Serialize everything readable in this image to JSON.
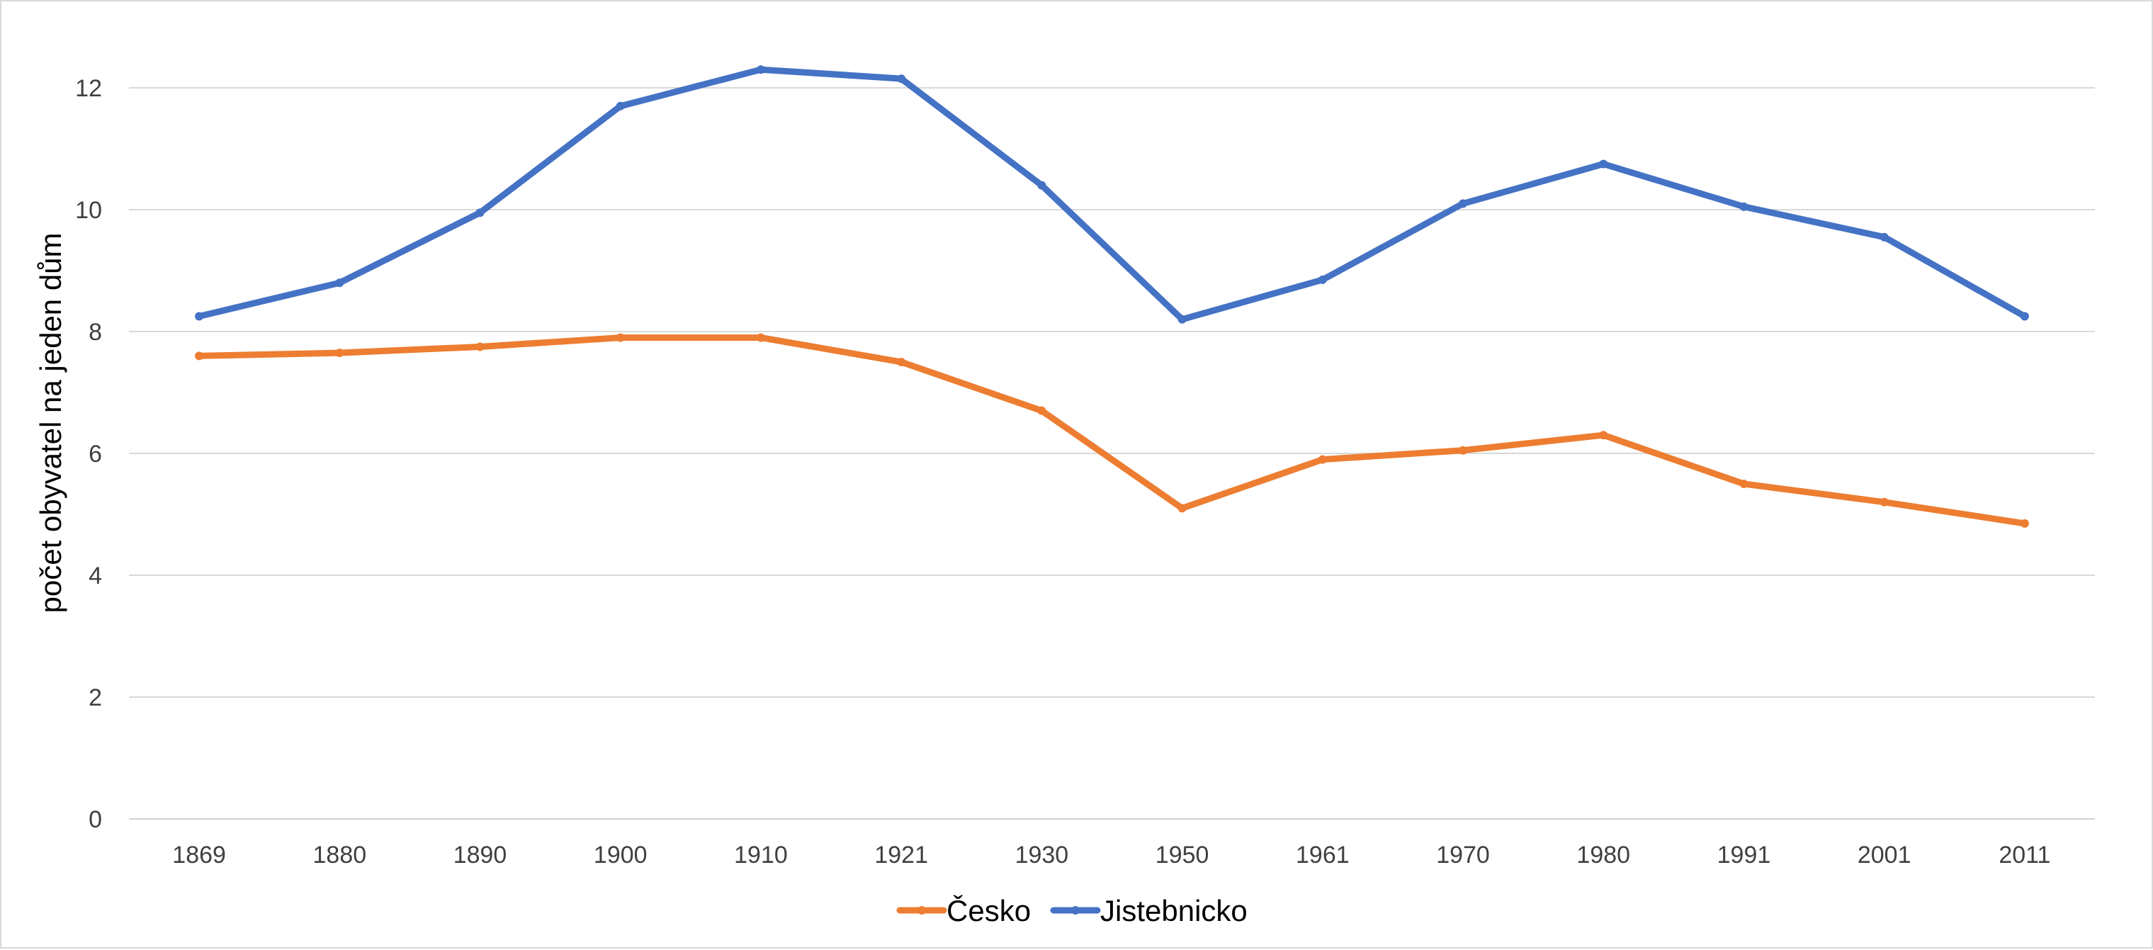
{
  "chart_data": {
    "type": "line",
    "title": "",
    "xlabel": "",
    "ylabel": "počet obyvatel na jeden dům",
    "categories": [
      "1869",
      "1880",
      "1890",
      "1900",
      "1910",
      "1921",
      "1930",
      "1950",
      "1961",
      "1970",
      "1980",
      "1991",
      "2001",
      "2011"
    ],
    "ylim": [
      0,
      13
    ],
    "yticks": [
      0,
      2,
      4,
      6,
      8,
      10,
      12
    ],
    "grid": true,
    "legend": "bottom",
    "series": [
      {
        "name": "Česko",
        "color": "#ED7D31",
        "values": [
          7.6,
          7.65,
          7.75,
          7.9,
          7.9,
          7.5,
          6.7,
          5.1,
          5.9,
          6.05,
          6.3,
          5.5,
          5.2,
          4.85
        ]
      },
      {
        "name": "Jistebnicko",
        "color": "#4472C4",
        "values": [
          8.25,
          8.8,
          9.95,
          11.7,
          12.3,
          12.15,
          10.4,
          8.2,
          8.85,
          10.1,
          10.75,
          10.05,
          9.55,
          8.25
        ]
      }
    ]
  }
}
